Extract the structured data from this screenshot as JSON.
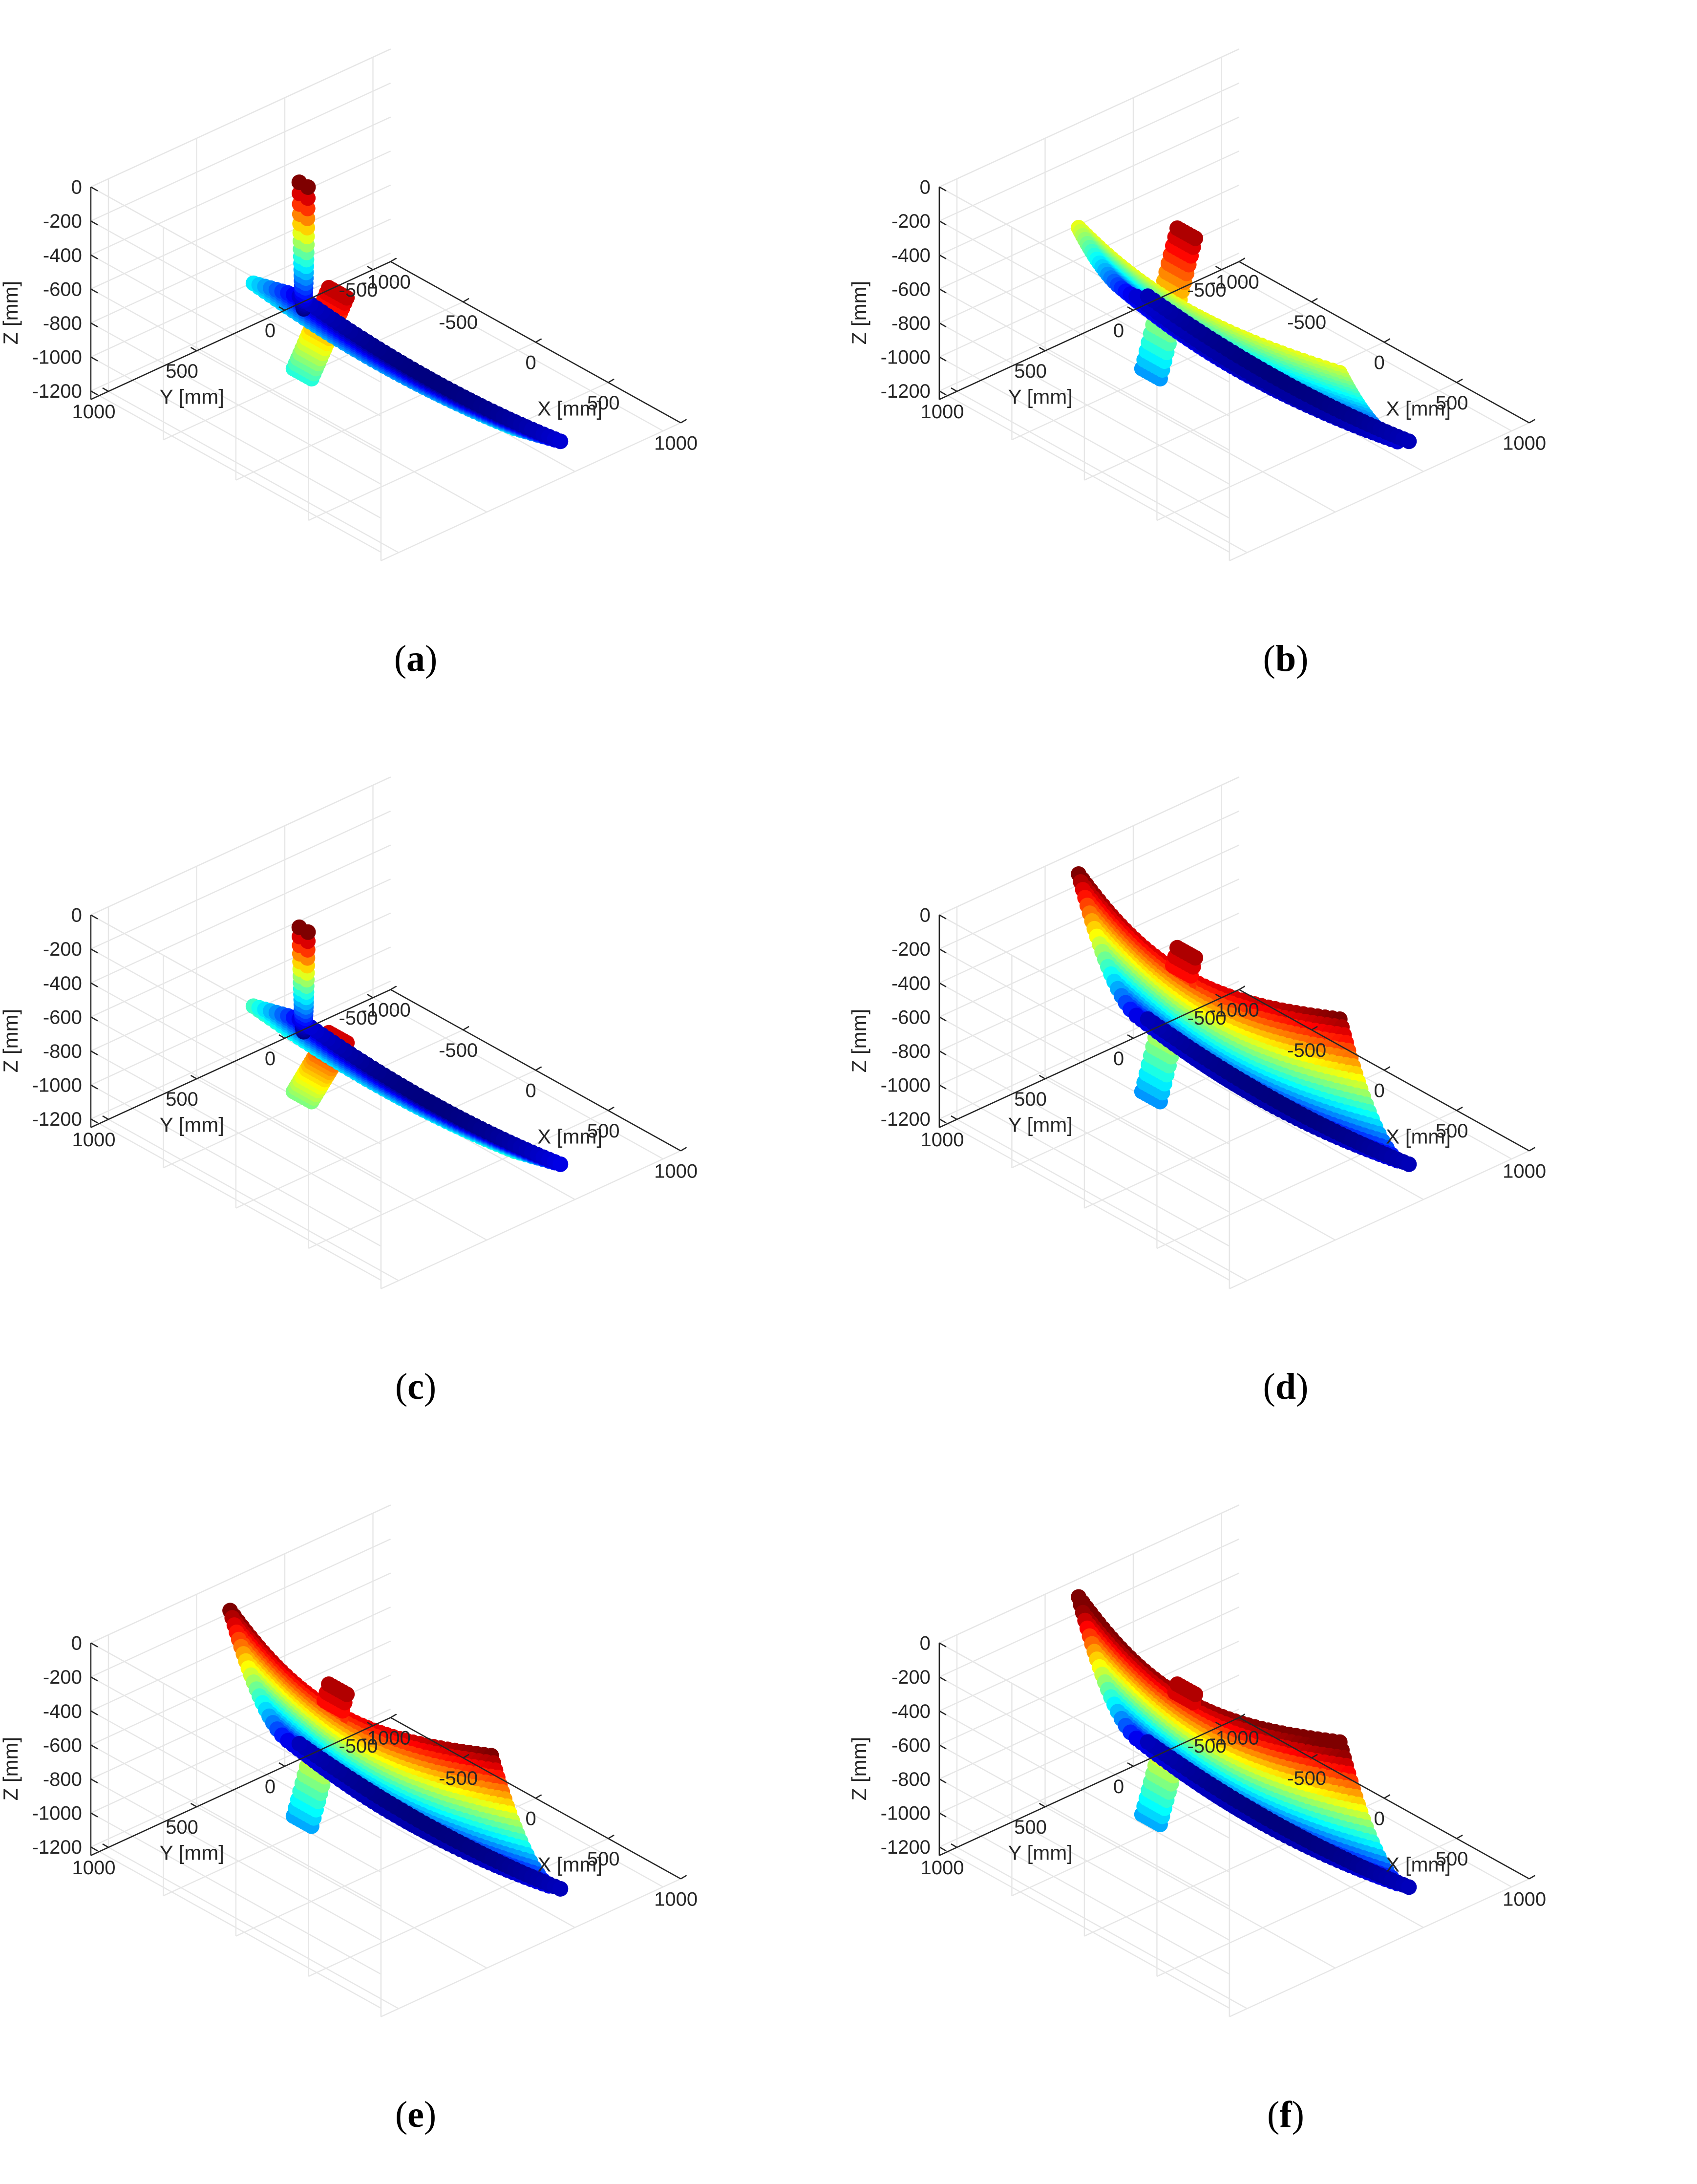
{
  "figure": {
    "panels": [
      {
        "label": "a",
        "caption": "(a)",
        "shape": "hull-outline-bottom"
      },
      {
        "label": "b",
        "caption": "(b)",
        "shape": "hull-lower-half"
      },
      {
        "label": "c",
        "caption": "(c)",
        "shape": "hull-outline-keel"
      },
      {
        "label": "d",
        "caption": "(d)",
        "shape": "hull-full"
      },
      {
        "label": "e",
        "caption": "(e)",
        "shape": "hull-full"
      },
      {
        "label": "f",
        "caption": "(f)",
        "shape": "hull-full-side"
      }
    ]
  },
  "chart_data": {
    "type": "scatter3d",
    "colormap": "jet",
    "colormap_stops": [
      "#00007f",
      "#0000ff",
      "#0080ff",
      "#00ffff",
      "#80ff80",
      "#ffff00",
      "#ff8000",
      "#ff0000",
      "#7f0000"
    ],
    "axes": {
      "x": {
        "label": "X [mm]",
        "ticks": [
          -1000,
          -500,
          0,
          500,
          1000
        ],
        "range": [
          -1000,
          1000
        ]
      },
      "y": {
        "label": "Y [mm]",
        "ticks": [
          -500,
          0,
          500,
          1000
        ],
        "range": [
          -600,
          1100
        ]
      },
      "z": {
        "label": "Z [mm]",
        "ticks": [
          0,
          -200,
          -400,
          -600,
          -800,
          -1000,
          -1200
        ],
        "range": [
          -1250,
          0
        ]
      },
      "grid": true
    },
    "panels": [
      {
        "label": "a",
        "z_range_of_points": [
          -1180,
          -450
        ]
      },
      {
        "label": "b",
        "z_range_of_points": [
          -1180,
          -100
        ]
      },
      {
        "label": "c",
        "z_range_of_points": [
          -1150,
          -550
        ]
      },
      {
        "label": "d",
        "z_range_of_points": [
          -1150,
          -50
        ]
      },
      {
        "label": "e",
        "z_range_of_points": [
          -1130,
          -100
        ]
      },
      {
        "label": "f",
        "z_range_of_points": [
          -1120,
          -100
        ]
      }
    ]
  }
}
